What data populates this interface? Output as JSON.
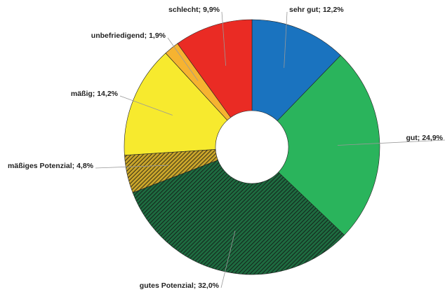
{
  "chart_data": {
    "type": "donut",
    "categories": [
      "sehr gut",
      "gut",
      "gutes Potenzial",
      "mäßiges Potenzial",
      "mäßig",
      "unbefriedigend",
      "schlecht"
    ],
    "values": [
      12.2,
      24.9,
      32.0,
      4.8,
      14.2,
      1.9,
      9.9
    ],
    "value_labels": [
      "12,2%",
      "24,9%",
      "32,0%",
      "4,8%",
      "14,2%",
      "1,9%",
      "9,9%"
    ],
    "label_separator": "; ",
    "colors": [
      "#1a73bf",
      "#2ab45c",
      "#1e6b40",
      "#c9a52a",
      "#f7ea2e",
      "#f6b330",
      "#ea2b24"
    ],
    "hatched": [
      false,
      false,
      true,
      true,
      false,
      false,
      false
    ]
  }
}
